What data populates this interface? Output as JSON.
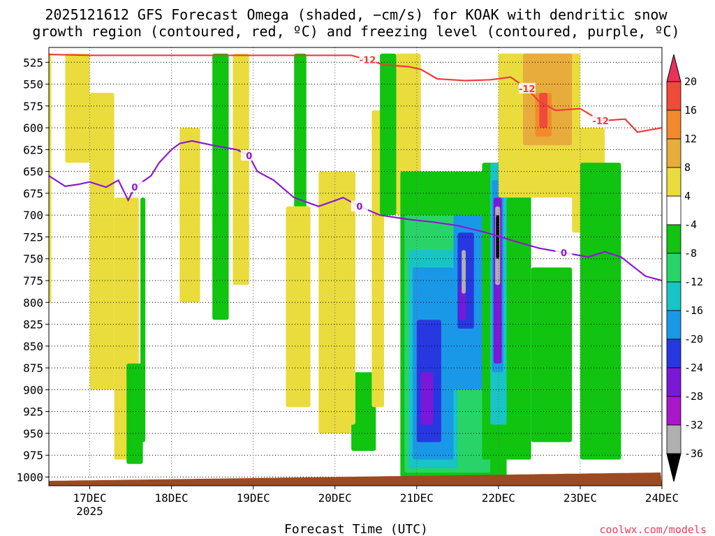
{
  "title": {
    "line1": "2025121612 GFS Forecast Omega (shaded, −cm/s) for KOAK with dendritic snow",
    "line2": "growth region (contoured, red, ºC) and freezing level (contoured, purple, ºC)"
  },
  "credit": "coolwx.com/models",
  "chart_data": {
    "type": "heatmap",
    "title": "2025121612 GFS Forecast Omega (shaded, −cm/s) for KOAK with dendritic snow growth region (contoured, red, ºC) and freezing level (contoured, purple, ºC)",
    "xlabel": "Forecast Time (UTC)",
    "ylabel": "",
    "x_range": [
      "2025-12-16T12",
      "2025-12-24T00"
    ],
    "x_ticks": [
      {
        "label": "17DEC",
        "sub": "2025",
        "time": "2025-12-17T00"
      },
      {
        "label": "18DEC",
        "sub": "",
        "time": "2025-12-18T00"
      },
      {
        "label": "19DEC",
        "sub": "",
        "time": "2025-12-19T00"
      },
      {
        "label": "20DEC",
        "sub": "",
        "time": "2025-12-20T00"
      },
      {
        "label": "21DEC",
        "sub": "",
        "time": "2025-12-21T00"
      },
      {
        "label": "22DEC",
        "sub": "",
        "time": "2025-12-22T00"
      },
      {
        "label": "23DEC",
        "sub": "",
        "time": "2025-12-23T00"
      },
      {
        "label": "24DEC",
        "sub": "",
        "time": "2025-12-24T00"
      }
    ],
    "y_levels": [
      525,
      550,
      575,
      600,
      625,
      650,
      675,
      700,
      725,
      750,
      775,
      800,
      825,
      850,
      875,
      900,
      925,
      950,
      975,
      1000
    ],
    "y_range": [
      1010,
      508
    ],
    "grid": true,
    "colorbar": {
      "levels": [
        20,
        16,
        12,
        8,
        4,
        -4,
        -8,
        -12,
        -16,
        -20,
        -24,
        -28,
        -32,
        -36
      ],
      "colors": [
        "#e8325a",
        "#f04a3a",
        "#f28a2c",
        "#e8ac3c",
        "#eadc3c",
        "#ffffff",
        "#10c410",
        "#28d468",
        "#18c4c4",
        "#1a98e8",
        "#2838e0",
        "#7a18d8",
        "#a818c8",
        "#b0b0b0",
        "#000000"
      ]
    },
    "shaded_regions": [
      {
        "value": 6,
        "t0": 0.0,
        "t1": 0.03,
        "p0": 515,
        "p1": 800
      },
      {
        "value": 6,
        "t0": 0.2,
        "t1": 0.5,
        "p0": 515,
        "p1": 640
      },
      {
        "value": 6,
        "t0": 0.5,
        "t1": 0.8,
        "p0": 560,
        "p1": 900
      },
      {
        "value": 6,
        "t0": 0.8,
        "t1": 1.1,
        "p0": 680,
        "p1": 980
      },
      {
        "value": -6,
        "t0": 0.95,
        "t1": 1.15,
        "p0": 870,
        "p1": 985
      },
      {
        "value": -6,
        "t0": 1.12,
        "t1": 1.18,
        "p0": 680,
        "p1": 960
      },
      {
        "value": 6,
        "t0": 1.6,
        "t1": 1.85,
        "p0": 600,
        "p1": 800
      },
      {
        "value": -6,
        "t0": 2.0,
        "t1": 2.2,
        "p0": 515,
        "p1": 820
      },
      {
        "value": 6,
        "t0": 2.25,
        "t1": 2.45,
        "p0": 515,
        "p1": 780
      },
      {
        "value": -6,
        "t0": 3.0,
        "t1": 3.15,
        "p0": 515,
        "p1": 760
      },
      {
        "value": 6,
        "t0": 3.3,
        "t1": 3.7,
        "p0": 650,
        "p1": 950
      },
      {
        "value": -6,
        "t0": 3.7,
        "t1": 4.0,
        "p0": 880,
        "p1": 970
      },
      {
        "value": 6,
        "t0": 3.95,
        "t1": 4.1,
        "p0": 580,
        "p1": 920
      },
      {
        "value": -6,
        "t0": 4.05,
        "t1": 4.25,
        "p0": 515,
        "p1": 700
      },
      {
        "value": 6,
        "t0": 4.25,
        "t1": 4.55,
        "p0": 515,
        "p1": 700
      },
      {
        "value": -6,
        "t0": 4.3,
        "t1": 5.6,
        "p0": 650,
        "p1": 1000
      },
      {
        "value": -10,
        "t0": 4.35,
        "t1": 5.4,
        "p0": 700,
        "p1": 995
      },
      {
        "value": -14,
        "t0": 4.4,
        "t1": 5.0,
        "p0": 740,
        "p1": 990
      },
      {
        "value": -18,
        "t0": 4.45,
        "t1": 4.95,
        "p0": 760,
        "p1": 980
      },
      {
        "value": -22,
        "t0": 4.5,
        "t1": 4.8,
        "p0": 820,
        "p1": 960
      },
      {
        "value": -26,
        "t0": 4.55,
        "t1": 4.7,
        "p0": 880,
        "p1": 940
      },
      {
        "value": -18,
        "t0": 4.95,
        "t1": 5.3,
        "p0": 700,
        "p1": 900
      },
      {
        "value": -22,
        "t0": 5.0,
        "t1": 5.2,
        "p0": 720,
        "p1": 830
      },
      {
        "value": -26,
        "t0": 5.02,
        "t1": 5.1,
        "p0": 780,
        "p1": 820
      },
      {
        "value": -34,
        "t0": 5.05,
        "t1": 5.1,
        "p0": 740,
        "p1": 790
      },
      {
        "value": -6,
        "t0": 5.3,
        "t1": 5.9,
        "p0": 640,
        "p1": 980
      },
      {
        "value": -14,
        "t0": 5.4,
        "t1": 5.6,
        "p0": 640,
        "p1": 940
      },
      {
        "value": -18,
        "t0": 5.42,
        "t1": 5.56,
        "p0": 660,
        "p1": 880
      },
      {
        "value": -26,
        "t0": 5.44,
        "t1": 5.54,
        "p0": 680,
        "p1": 870
      },
      {
        "value": -34,
        "t0": 5.46,
        "t1": 5.52,
        "p0": 690,
        "p1": 780
      },
      {
        "value": -40,
        "t0": 5.47,
        "t1": 5.51,
        "p0": 700,
        "p1": 750
      },
      {
        "value": -6,
        "t0": 5.9,
        "t1": 6.4,
        "p0": 760,
        "p1": 960
      },
      {
        "value": 6,
        "t0": 5.5,
        "t1": 6.5,
        "p0": 515,
        "p1": 680
      },
      {
        "value": 10,
        "t0": 5.8,
        "t1": 6.4,
        "p0": 515,
        "p1": 620
      },
      {
        "value": 14,
        "t0": 5.95,
        "t1": 6.15,
        "p0": 560,
        "p1": 610
      },
      {
        "value": 18,
        "t0": 6.0,
        "t1": 6.1,
        "p0": 560,
        "p1": 600
      },
      {
        "value": 6,
        "t0": 6.4,
        "t1": 6.8,
        "p0": 600,
        "p1": 720
      },
      {
        "value": 6,
        "t0": 2.9,
        "t1": 3.2,
        "p0": 690,
        "p1": 920
      },
      {
        "value": 6,
        "t0": 3.55,
        "t1": 3.75,
        "p0": 650,
        "p1": 940
      },
      {
        "value": -6,
        "t0": 6.5,
        "t1": 7.0,
        "p0": 640,
        "p1": 980
      }
    ],
    "freezing_level": {
      "label": "0",
      "color": "#8a1ad0",
      "points": [
        [
          0.0,
          655
        ],
        [
          0.2,
          667
        ],
        [
          0.35,
          665
        ],
        [
          0.5,
          662
        ],
        [
          0.7,
          668
        ],
        [
          0.85,
          660
        ],
        [
          0.97,
          683
        ],
        [
          1.05,
          668
        ],
        [
          1.25,
          655
        ],
        [
          1.35,
          640
        ],
        [
          1.5,
          625
        ],
        [
          1.6,
          618
        ],
        [
          1.75,
          615
        ],
        [
          2.0,
          620
        ],
        [
          2.3,
          625
        ],
        [
          2.45,
          632
        ],
        [
          2.55,
          650
        ],
        [
          2.75,
          660
        ],
        [
          3.0,
          680
        ],
        [
          3.3,
          690
        ],
        [
          3.6,
          680
        ],
        [
          3.8,
          690
        ],
        [
          4.05,
          700
        ],
        [
          4.4,
          705
        ],
        [
          4.7,
          708
        ],
        [
          5.0,
          712
        ],
        [
          5.35,
          720
        ],
        [
          5.7,
          730
        ],
        [
          6.0,
          738
        ],
        [
          6.3,
          743
        ],
        [
          6.6,
          748
        ],
        [
          6.8,
          742
        ],
        [
          7.0,
          748
        ],
        [
          7.3,
          770
        ],
        [
          7.5,
          775
        ]
      ]
    },
    "dgz_contour": {
      "label": "-12",
      "color": "#f03c3c",
      "points": [
        [
          0.0,
          516
        ],
        [
          0.5,
          517
        ],
        [
          3.7,
          517
        ],
        [
          3.9,
          522
        ],
        [
          4.1,
          528
        ],
        [
          4.4,
          530
        ],
        [
          4.55,
          533
        ],
        [
          4.75,
          544
        ],
        [
          5.1,
          546
        ],
        [
          5.4,
          545
        ],
        [
          5.65,
          542
        ],
        [
          5.85,
          555
        ],
        [
          6.0,
          570
        ],
        [
          6.2,
          580
        ],
        [
          6.5,
          578
        ],
        [
          6.75,
          592
        ],
        [
          7.05,
          590
        ],
        [
          7.2,
          605
        ],
        [
          7.5,
          600
        ]
      ]
    }
  }
}
